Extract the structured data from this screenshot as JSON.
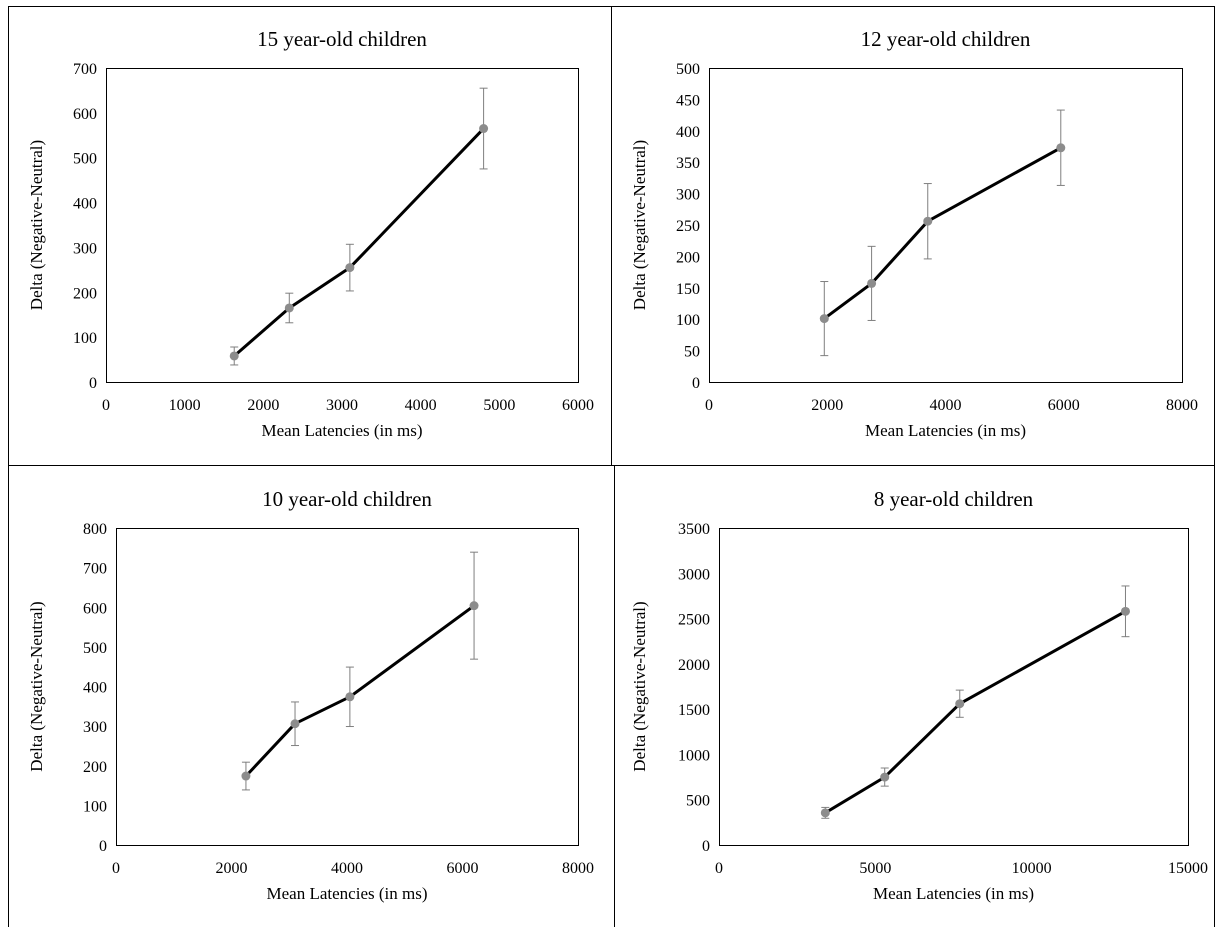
{
  "chart_data": [
    {
      "type": "line",
      "title": "15 year-old children",
      "xlabel": "Mean Latencies (in ms)",
      "ylabel": "Delta (Negative-Neutral)",
      "xlim": [
        0,
        6000
      ],
      "ylim": [
        0,
        700
      ],
      "xticks": [
        0,
        1000,
        2000,
        3000,
        4000,
        5000,
        6000
      ],
      "yticks": [
        0,
        100,
        200,
        300,
        400,
        500,
        600,
        700
      ],
      "x": [
        1630,
        2330,
        3100,
        4800
      ],
      "y": [
        58,
        165,
        255,
        565
      ],
      "error": [
        20,
        33,
        52,
        90
      ],
      "line_color": "#000000",
      "marker_color": "#8c8c8c",
      "grid": false,
      "legend": "none"
    },
    {
      "type": "line",
      "title": "12 year-old children",
      "xlabel": "Mean Latencies (in ms)",
      "ylabel": "Delta (Negative-Neutral)",
      "xlim": [
        0,
        8000
      ],
      "ylim": [
        0,
        500
      ],
      "xticks": [
        0,
        2000,
        4000,
        6000,
        8000
      ],
      "yticks": [
        0,
        50,
        100,
        150,
        200,
        250,
        300,
        350,
        400,
        450,
        500
      ],
      "x": [
        1950,
        2750,
        3700,
        5950
      ],
      "y": [
        101,
        157,
        256,
        373
      ],
      "error": [
        59,
        59,
        60,
        60
      ],
      "line_color": "#000000",
      "marker_color": "#8c8c8c",
      "grid": false,
      "legend": "none"
    },
    {
      "type": "line",
      "title": "10 year-old children",
      "xlabel": "Mean Latencies (in ms)",
      "ylabel": "Delta (Negative-Neutral)",
      "xlim": [
        0,
        8000
      ],
      "ylim": [
        0,
        800
      ],
      "xticks": [
        0,
        2000,
        4000,
        6000,
        8000
      ],
      "yticks": [
        0,
        100,
        200,
        300,
        400,
        500,
        600,
        700,
        800
      ],
      "x": [
        2250,
        3100,
        4050,
        6200
      ],
      "y": [
        174,
        306,
        374,
        604
      ],
      "error": [
        35,
        55,
        75,
        135
      ],
      "line_color": "#000000",
      "marker_color": "#8c8c8c",
      "grid": false,
      "legend": "none"
    },
    {
      "type": "line",
      "title": "8 year-old children",
      "xlabel": "Mean Latencies (in ms)",
      "ylabel": "Delta (Negative-Neutral)",
      "xlim": [
        0,
        15000
      ],
      "ylim": [
        0,
        3500
      ],
      "xticks": [
        0,
        5000,
        10000,
        15000
      ],
      "yticks": [
        0,
        500,
        1000,
        1500,
        2000,
        2500,
        3000,
        3500
      ],
      "x": [
        3400,
        5300,
        7700,
        13000
      ],
      "y": [
        355,
        750,
        1560,
        2580
      ],
      "error": [
        60,
        100,
        150,
        280
      ],
      "line_color": "#000000",
      "marker_color": "#8c8c8c",
      "grid": false,
      "legend": "none"
    }
  ]
}
